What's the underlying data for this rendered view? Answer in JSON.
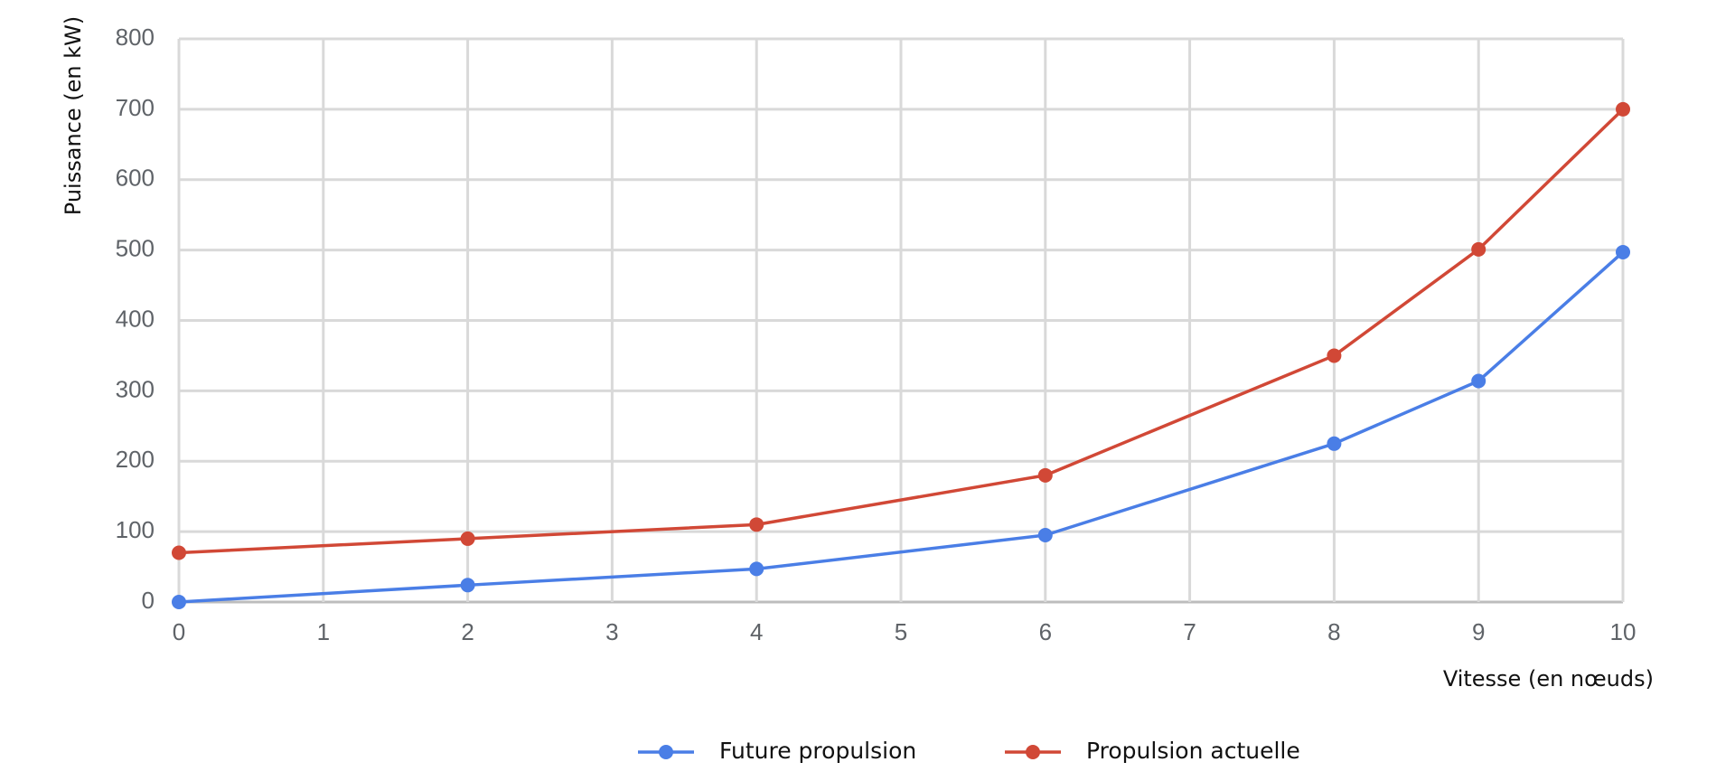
{
  "chart_data": {
    "type": "line",
    "title": "",
    "xlabel": "Vitesse (en nœuds)",
    "ylabel": "Puissance (en kW)",
    "x_ticks": [
      0,
      1,
      2,
      3,
      4,
      5,
      6,
      7,
      8,
      9,
      10
    ],
    "y_ticks": [
      0,
      100,
      200,
      300,
      400,
      500,
      600,
      700,
      800
    ],
    "xlim": [
      0,
      10
    ],
    "ylim": [
      0,
      800
    ],
    "grid": true,
    "legend_position": "bottom",
    "series": [
      {
        "name": "Future propulsion",
        "color": "#4a7ee6",
        "points": [
          [
            0,
            0
          ],
          [
            2,
            24
          ],
          [
            4,
            47
          ],
          [
            6,
            95
          ],
          [
            8,
            225
          ],
          [
            9,
            314
          ],
          [
            10,
            497
          ]
        ]
      },
      {
        "name": "Propulsion actuelle",
        "color": "#d14836",
        "points": [
          [
            0,
            70
          ],
          [
            2,
            90
          ],
          [
            4,
            110
          ],
          [
            6,
            180
          ],
          [
            8,
            350
          ],
          [
            9,
            501
          ],
          [
            10,
            700
          ]
        ]
      }
    ]
  }
}
